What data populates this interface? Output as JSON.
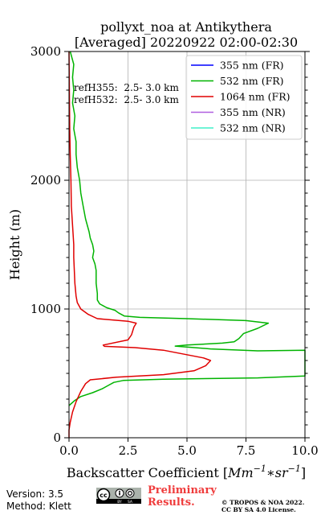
{
  "chart_data": {
    "type": "line",
    "title": "pollyxt_noa at Antikythera",
    "subtitle": "[Averaged] 20220922 02:00-02:30",
    "xlabel": "Backscatter Coefficient [$Mm^{-1}*sr^{-1}$]",
    "xlabel_parts": {
      "prefix": "Backscatter Coefficient [",
      "base1": "Mm",
      "sup1": "−1",
      "star": "∗",
      "base2": "sr",
      "sup2": "−1",
      "suffix": "]"
    },
    "ylabel": "Height (m)",
    "xlim": [
      0,
      10
    ],
    "ylim": [
      0,
      3000
    ],
    "x_ticks": [
      0,
      2.5,
      5,
      7.5,
      10
    ],
    "x_tick_labels": [
      "0.0",
      "2.5",
      "5.0",
      "7.5",
      "10.0"
    ],
    "y_ticks": [
      0,
      1000,
      2000,
      3000
    ],
    "y_tick_labels": [
      "0",
      "1000",
      "2000",
      "3000"
    ],
    "grid": true,
    "legend_position": "top-right",
    "annotations": [
      "refH355:  2.5- 3.0 km",
      "refH532:  2.5- 3.0 km"
    ],
    "series": [
      {
        "name": "355 nm (FR)",
        "color": "#0000ff",
        "points": []
      },
      {
        "name": "532 nm (FR)",
        "color": "#00b300",
        "points": [
          [
            0.0,
            250
          ],
          [
            0.25,
            290
          ],
          [
            0.5,
            320
          ],
          [
            1.0,
            350
          ],
          [
            1.4,
            380
          ],
          [
            1.7,
            410
          ],
          [
            1.9,
            430
          ],
          [
            2.3,
            445
          ],
          [
            4.0,
            455
          ],
          [
            8.0,
            465
          ],
          [
            10.0,
            480
          ],
          [
            10.0,
            680
          ],
          [
            8.0,
            675
          ],
          [
            6.0,
            690
          ],
          [
            4.5,
            712
          ],
          [
            5.0,
            720
          ],
          [
            6.5,
            735
          ],
          [
            7.0,
            745
          ],
          [
            7.2,
            770
          ],
          [
            7.4,
            810
          ],
          [
            8.0,
            850
          ],
          [
            8.45,
            890
          ],
          [
            7.5,
            910
          ],
          [
            5.0,
            925
          ],
          [
            3.0,
            935
          ],
          [
            2.35,
            945
          ],
          [
            2.1,
            970
          ],
          [
            1.95,
            990
          ],
          [
            1.6,
            1010
          ],
          [
            1.3,
            1040
          ],
          [
            1.2,
            1070
          ],
          [
            1.2,
            1120
          ],
          [
            1.15,
            1200
          ],
          [
            1.15,
            1300
          ],
          [
            1.1,
            1350
          ],
          [
            1.0,
            1400
          ],
          [
            1.05,
            1450
          ],
          [
            1.0,
            1500
          ],
          [
            0.9,
            1550
          ],
          [
            0.85,
            1600
          ],
          [
            0.7,
            1700
          ],
          [
            0.6,
            1800
          ],
          [
            0.5,
            1900
          ],
          [
            0.45,
            2000
          ],
          [
            0.35,
            2100
          ],
          [
            0.3,
            2200
          ],
          [
            0.3,
            2300
          ],
          [
            0.2,
            2400
          ],
          [
            0.25,
            2500
          ],
          [
            0.15,
            2600
          ],
          [
            0.2,
            2700
          ],
          [
            0.15,
            2800
          ],
          [
            0.2,
            2900
          ],
          [
            0.05,
            3000
          ]
        ]
      },
      {
        "name": "1064 nm (FR)",
        "color": "#e00000",
        "points": [
          [
            0.0,
            0
          ],
          [
            0.0,
            60
          ],
          [
            0.05,
            120
          ],
          [
            0.15,
            200
          ],
          [
            0.3,
            280
          ],
          [
            0.5,
            360
          ],
          [
            0.7,
            420
          ],
          [
            0.9,
            450
          ],
          [
            2.0,
            470
          ],
          [
            4.0,
            490
          ],
          [
            5.3,
            520
          ],
          [
            5.8,
            560
          ],
          [
            6.0,
            600
          ],
          [
            5.7,
            620
          ],
          [
            4.0,
            680
          ],
          [
            2.8,
            700
          ],
          [
            1.5,
            710
          ],
          [
            1.45,
            720
          ],
          [
            2.5,
            760
          ],
          [
            2.65,
            800
          ],
          [
            2.75,
            860
          ],
          [
            2.85,
            890
          ],
          [
            2.5,
            905
          ],
          [
            1.2,
            925
          ],
          [
            0.8,
            960
          ],
          [
            0.5,
            1000
          ],
          [
            0.35,
            1050
          ],
          [
            0.3,
            1100
          ],
          [
            0.25,
            1200
          ],
          [
            0.2,
            1400
          ],
          [
            0.2,
            1500
          ],
          [
            0.15,
            1650
          ],
          [
            0.1,
            1800
          ],
          [
            0.08,
            2000
          ],
          [
            0.05,
            2200
          ],
          [
            0.03,
            2400
          ],
          [
            0.02,
            2600
          ],
          [
            0.01,
            2800
          ],
          [
            0.0,
            3000
          ]
        ]
      },
      {
        "name": "355 nm (NR)",
        "color": "#b05fe0",
        "points": []
      },
      {
        "name": "532 nm (NR)",
        "color": "#40f0c8",
        "points": []
      }
    ]
  },
  "footer": {
    "version": "Version: 3.5",
    "method": "Method: Klett",
    "preliminary": "Preliminary\nResults.",
    "preliminary_line1": "Preliminary",
    "preliminary_line2": "Results.",
    "copyright_line1": "© TROPOS & NOA 2022.",
    "copyright_line2": "CC BY SA 4.0 License."
  }
}
